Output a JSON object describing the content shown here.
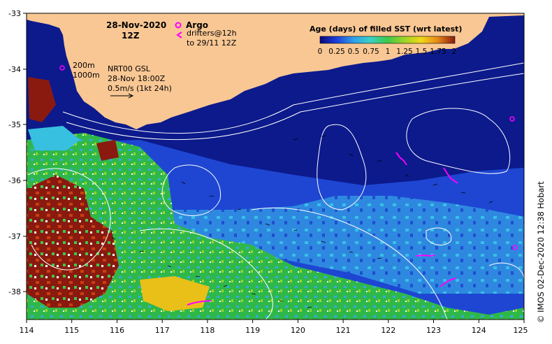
{
  "map": {
    "date_title": "28-Nov-2020",
    "time_title": "12Z",
    "isobath_shallow": "200m",
    "isobath_deep": "1000m",
    "nrt_product": "NRT00 GSL",
    "nrt_time": "28-Nov 18:00Z",
    "scale_label": "0.5m/s (1kt 24h)",
    "argo_label": "Argo",
    "drifters_label_1": "drifters@12h",
    "drifters_label_2": "to 29/11 12Z",
    "copyright": "© IMOS 02-Dec-2020 12:38 Hobart",
    "colors": {
      "land": "#f9c794",
      "deep_ocean": "#0c1a8c",
      "argo": "#ff00ff",
      "drifter": "#ff00ff",
      "contour": "#ffffff"
    }
  },
  "legend": {
    "title": "Age (days) of filled SST (wrt latest)",
    "ticks": [
      "0",
      "0.25",
      "0.5",
      "0.75",
      "1",
      "1.25",
      "1.5",
      "1.75",
      "2"
    ],
    "colorscale": [
      "#0a0a7a",
      "#1e3cd8",
      "#2fa0e8",
      "#3ad0c8",
      "#3cc84a",
      "#9ad428",
      "#f0d818",
      "#e88a18",
      "#c84010",
      "#8a1a10"
    ]
  },
  "axes": {
    "x_ticks": [
      "114",
      "115",
      "116",
      "117",
      "118",
      "119",
      "120",
      "121",
      "122",
      "123",
      "124",
      "125"
    ],
    "y_ticks": [
      "-33",
      "-34",
      "-35",
      "-36",
      "-37",
      "-38"
    ]
  }
}
